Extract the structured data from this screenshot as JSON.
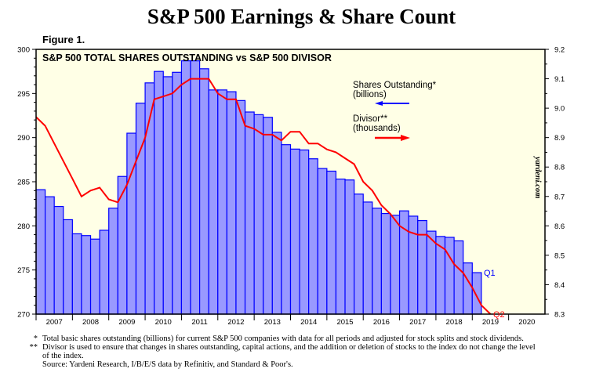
{
  "title": "S&P 500 Earnings & Share Count",
  "figure_label": "Figure 1.",
  "watermark": "yardeni.com",
  "colors": {
    "bars_fill": "#9999ff",
    "bars_stroke": "#0000ff",
    "divisor_line": "#ff0000",
    "plot_bg": "#ffffe6"
  },
  "chart_data": {
    "type": "bar+line",
    "title": "S&P 500 TOTAL SHARES OUTSTANDING vs S&P 500 DIVISOR",
    "x_tick_labels": [
      "2007",
      "2008",
      "2009",
      "2010",
      "2011",
      "2012",
      "2013",
      "2014",
      "2015",
      "2016",
      "2017",
      "2018",
      "2019",
      "2020"
    ],
    "left_axis": {
      "ylim": [
        270,
        300
      ],
      "ticks": [
        "270",
        "275",
        "280",
        "285",
        "290",
        "295",
        "300"
      ]
    },
    "right_axis": {
      "ylim": [
        8.3,
        9.2
      ],
      "ticks": [
        "8.3",
        "8.4",
        "8.5",
        "8.6",
        "8.7",
        "8.8",
        "8.9",
        "9.0",
        "9.1",
        "9.2"
      ]
    },
    "series": [
      {
        "name": "Shares Outstanding* (billions)",
        "type": "bar",
        "axis": "left",
        "frequency": "quarterly",
        "start": "2007 Q1",
        "end_label": "Q1",
        "values": [
          284.1,
          283.3,
          282.2,
          280.7,
          279.1,
          278.9,
          278.5,
          279.5,
          282.0,
          285.6,
          290.5,
          293.9,
          296.2,
          297.5,
          296.9,
          297.4,
          298.7,
          298.7,
          297.8,
          295.4,
          295.4,
          295.2,
          294.2,
          292.9,
          292.6,
          292.3,
          290.6,
          289.2,
          288.7,
          288.6,
          287.6,
          286.5,
          286.2,
          285.3,
          285.2,
          283.6,
          282.7,
          282.0,
          281.4,
          281.2,
          281.7,
          281.1,
          280.6,
          279.4,
          278.8,
          278.7,
          278.3,
          275.8,
          274.7
        ]
      },
      {
        "name": "Divisor** (thousands)",
        "type": "line",
        "axis": "right",
        "frequency": "quarterly",
        "start": "2007 Q1",
        "end_label": "Q2",
        "values": [
          8.97,
          8.94,
          8.88,
          8.82,
          8.76,
          8.7,
          8.72,
          8.73,
          8.69,
          8.68,
          8.74,
          8.82,
          8.9,
          9.03,
          9.04,
          9.05,
          9.08,
          9.1,
          9.1,
          9.1,
          9.05,
          9.03,
          9.03,
          8.94,
          8.93,
          8.91,
          8.91,
          8.89,
          8.92,
          8.92,
          8.88,
          8.88,
          8.86,
          8.85,
          8.83,
          8.81,
          8.75,
          8.72,
          8.67,
          8.64,
          8.6,
          8.58,
          8.57,
          8.57,
          8.54,
          8.52,
          8.47,
          8.44,
          8.39,
          8.33,
          8.3
        ]
      }
    ],
    "legend": {
      "shares_line1": "Shares Outstanding*",
      "shares_line2": "(billions)",
      "divisor_line1": "Divisor**",
      "divisor_line2": "(thousands)",
      "placement": "upper-right"
    }
  },
  "footnotes": {
    "note1_mark": "*",
    "note1": "Total basic shares outstanding (billions) for current S&P 500 companies with data for all periods and adjusted for stock splits and stock dividends.",
    "note2_mark": "**",
    "note2": "Divisor is used to ensure that changes in shares outstanding, capital actions, and the addition or deletion of stocks to the index do not change the level of the index.",
    "source": "Source: Yardeni Research, I/B/E/S data by Refinitiv, and Standard & Poor's."
  }
}
